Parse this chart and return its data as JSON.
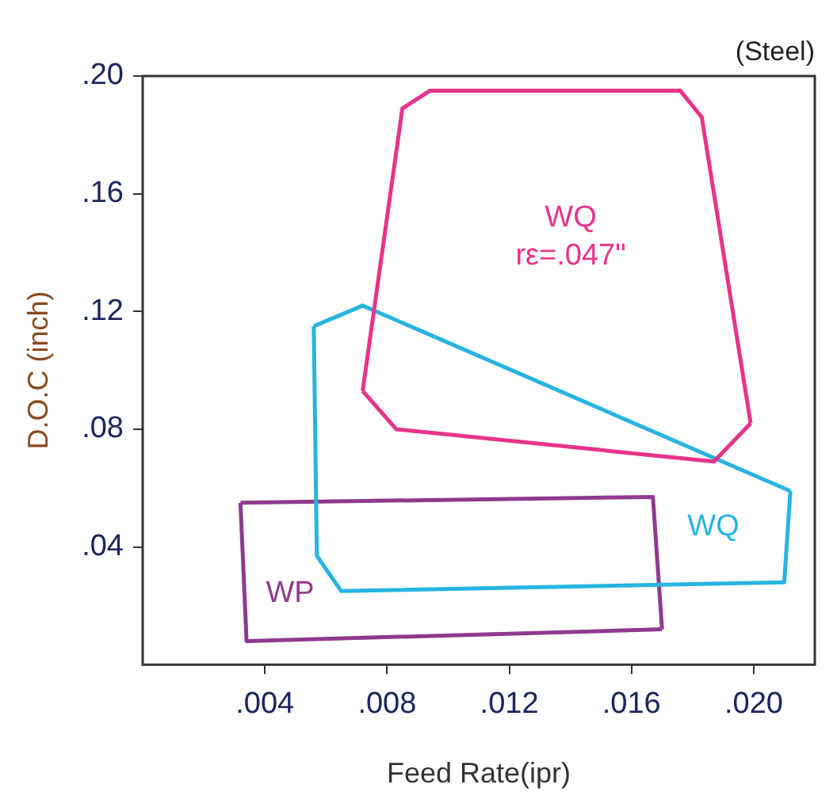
{
  "chart_data": {
    "type": "line",
    "xlabel": "Feed Rate(ipr)",
    "ylabel": "D.O.C (inch)",
    "xlim": [
      0,
      0.022
    ],
    "ylim": [
      0,
      0.2
    ],
    "xticks": [
      {
        "value": 0.004,
        "label": ".004"
      },
      {
        "value": 0.008,
        "label": ".008"
      },
      {
        "value": 0.012,
        "label": ".012"
      },
      {
        "value": 0.016,
        "label": ".016"
      },
      {
        "value": 0.02,
        "label": ".020"
      }
    ],
    "yticks": [
      {
        "value": 0.04,
        "label": ".04"
      },
      {
        "value": 0.08,
        "label": ".08"
      },
      {
        "value": 0.12,
        "label": ".12"
      },
      {
        "value": 0.16,
        "label": ".16"
      },
      {
        "value": 0.2,
        "label": ".20"
      }
    ],
    "series": [
      {
        "name": "WQ rε=.047\"",
        "color": "#e8338a",
        "x": [
          0.0072,
          0.0085,
          0.0094,
          0.0176,
          0.0183,
          0.0199
        ],
        "values": [
          0.093,
          0.189,
          0.195,
          0.195,
          0.186,
          0.082
        ]
      },
      {
        "color": "#e8338a",
        "x": [
          0.0072,
          0.0083,
          0.0187,
          0.0199
        ],
        "values": [
          0.093,
          0.08,
          0.069,
          0.082
        ]
      },
      {
        "name": "WQ",
        "color": "#27b4e0",
        "x": [
          0.0056,
          0.0072,
          0.0212
        ],
        "values": [
          0.115,
          0.122,
          0.059
        ]
      },
      {
        "color": "#27b4e0",
        "x": [
          0.0056,
          0.0057,
          0.0065,
          0.021,
          0.0212
        ],
        "values": [
          0.115,
          0.037,
          0.025,
          0.028,
          0.059
        ]
      },
      {
        "name": "WP",
        "color": "#8e3a8e",
        "x": [
          0.0032,
          0.0167,
          0.017
        ],
        "values": [
          0.055,
          0.057,
          0.012
        ]
      },
      {
        "color": "#8e3a8e",
        "x": [
          0.0032,
          0.0034,
          0.017
        ],
        "values": [
          0.055,
          0.008,
          0.012
        ]
      }
    ],
    "annotations": [
      "(Steel)"
    ]
  }
}
